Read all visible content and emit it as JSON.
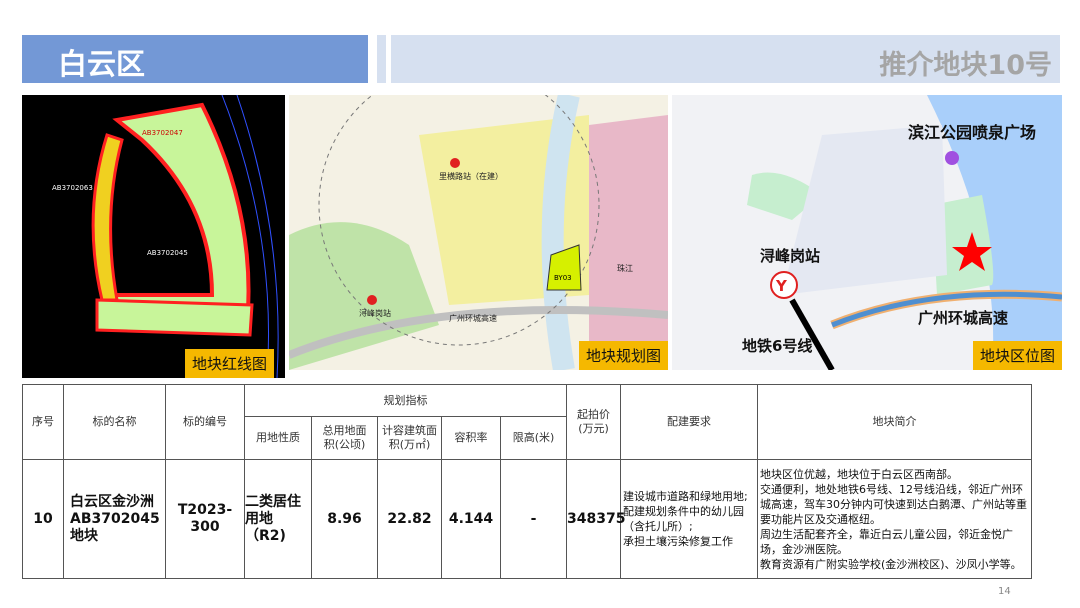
{
  "header": {
    "district": "白云区",
    "title": "推介地块10号"
  },
  "images": {
    "red_line": {
      "label": "地块红线图",
      "plot_codes": [
        "AB3702047",
        "AB3702063",
        "AB3702045"
      ]
    },
    "planning": {
      "label": "地块规划图",
      "plot_code": "BY03",
      "station": "浔峰岗站",
      "road": "广州环城高速",
      "river": "珠江",
      "station2": "里横路站（在建）"
    },
    "location": {
      "label": "地块区位图",
      "park": "滨江公园喷泉广场",
      "station": "浔峰岗站",
      "highway": "广州环城高速",
      "metro": "地铁6号线",
      "marker_color": "#ff0000"
    }
  },
  "table": {
    "headers": {
      "index": "序号",
      "name": "标的名称",
      "code": "标的编号",
      "group": "规划指标",
      "land_use": "用地性质",
      "area": "总用地面积(公顷)",
      "floor_area": "计容建筑面积(万㎡)",
      "far": "容积率",
      "height": "限高(米)",
      "price": "起拍价(万元)",
      "requirements": "配建要求",
      "intro": "地块简介"
    },
    "row": {
      "index": "10",
      "name": "白云区金沙洲AB3702045地块",
      "code": "T2023-300",
      "land_use": "二类居住用地（R2)",
      "area": "8.96",
      "floor_area": "22.82",
      "far": "4.144",
      "height": "-",
      "price": "348375",
      "requirements": [
        "建设城市道路和绿地用地;",
        "配建规划条件中的幼儿园（含托儿所）;",
        "承担土壤污染修复工作"
      ],
      "intro": [
        "地块区位优越，地块位于白云区西南部。",
        "交通便利，地处地铁6号线、12号线沿线，邻近广州环城高速，驾车30分钟内可快速到达白鹅潭、广州站等重要功能片区及交通枢纽。",
        "周边生活配套齐全，靠近白云儿童公园，邻近金悦广场，金沙洲医院。",
        "教育资源有广附实验学校(金沙洲校区)、沙凤小学等。"
      ]
    }
  },
  "page_number": "14"
}
